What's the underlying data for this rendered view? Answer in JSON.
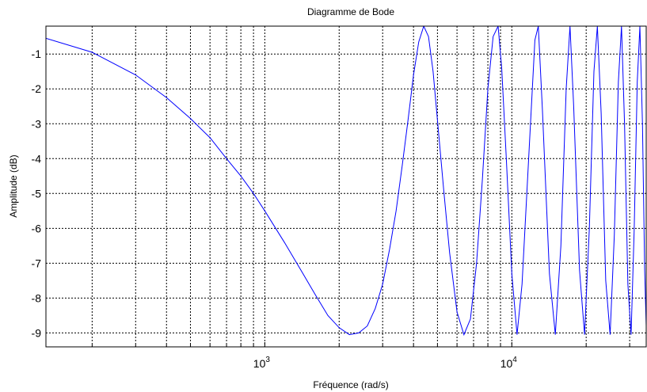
{
  "chart_data": {
    "type": "line",
    "title": "Diagramme de Bode",
    "xlabel": "Fréquence  (rad/s)",
    "ylabel": "Amplitude (dB)",
    "x_scale": "log",
    "xlim": [
      130,
      35000
    ],
    "ylim": [
      -9.4,
      -0.2
    ],
    "grid": true,
    "x_major_ticks": [
      {
        "value": 1000,
        "base": "10",
        "exp": "3"
      },
      {
        "value": 10000,
        "base": "10",
        "exp": "4"
      }
    ],
    "y_ticks": [
      -1,
      -2,
      -3,
      -4,
      -5,
      -6,
      -7,
      -8,
      -9
    ],
    "series": [
      {
        "line_color": "#0000ff",
        "points": [
          [
            130,
            -0.55
          ],
          [
            200,
            -0.95
          ],
          [
            300,
            -1.6
          ],
          [
            400,
            -2.25
          ],
          [
            500,
            -2.85
          ],
          [
            600,
            -3.4
          ],
          [
            700,
            -4.0
          ],
          [
            800,
            -4.5
          ],
          [
            900,
            -5.0
          ],
          [
            1000,
            -5.5
          ],
          [
            1200,
            -6.4
          ],
          [
            1400,
            -7.2
          ],
          [
            1600,
            -7.9
          ],
          [
            1800,
            -8.5
          ],
          [
            2000,
            -8.85
          ],
          [
            2200,
            -9.05
          ],
          [
            2400,
            -9.0
          ],
          [
            2600,
            -8.8
          ],
          [
            2800,
            -8.3
          ],
          [
            3000,
            -7.6
          ],
          [
            3200,
            -6.6
          ],
          [
            3400,
            -5.5
          ],
          [
            3600,
            -4.2
          ],
          [
            3800,
            -2.9
          ],
          [
            4000,
            -1.6
          ],
          [
            4200,
            -0.65
          ],
          [
            4400,
            -0.2
          ],
          [
            4600,
            -0.5
          ],
          [
            4800,
            -1.5
          ],
          [
            5000,
            -2.9
          ],
          [
            5300,
            -4.9
          ],
          [
            5600,
            -6.7
          ],
          [
            6000,
            -8.4
          ],
          [
            6400,
            -9.05
          ],
          [
            6800,
            -8.6
          ],
          [
            7200,
            -7.0
          ],
          [
            7600,
            -4.6
          ],
          [
            8000,
            -2.0
          ],
          [
            8400,
            -0.5
          ],
          [
            8800,
            -0.2
          ],
          [
            9100,
            -1.4
          ],
          [
            9500,
            -4.0
          ],
          [
            10000,
            -7.3
          ],
          [
            10500,
            -9.05
          ],
          [
            11000,
            -7.6
          ],
          [
            11700,
            -4.0
          ],
          [
            12400,
            -0.6
          ],
          [
            12800,
            -0.2
          ],
          [
            13300,
            -2.6
          ],
          [
            14200,
            -7.3
          ],
          [
            15000,
            -9.05
          ],
          [
            15800,
            -6.5
          ],
          [
            16600,
            -2.0
          ],
          [
            17200,
            -0.2
          ],
          [
            17800,
            -2.5
          ],
          [
            18800,
            -7.2
          ],
          [
            19700,
            -9.05
          ],
          [
            20600,
            -6.0
          ],
          [
            21500,
            -1.5
          ],
          [
            22200,
            -0.2
          ],
          [
            23000,
            -2.7
          ],
          [
            24000,
            -7.5
          ],
          [
            25000,
            -9.05
          ],
          [
            26000,
            -6.2
          ],
          [
            27000,
            -1.8
          ],
          [
            27800,
            -0.2
          ],
          [
            28600,
            -3.0
          ],
          [
            29500,
            -7.6
          ],
          [
            30400,
            -9.05
          ],
          [
            31300,
            -6.0
          ],
          [
            32200,
            -1.8
          ],
          [
            33000,
            -0.2
          ],
          [
            33800,
            -3.0
          ],
          [
            34500,
            -7.2
          ],
          [
            35000,
            -8.8
          ]
        ]
      }
    ]
  }
}
